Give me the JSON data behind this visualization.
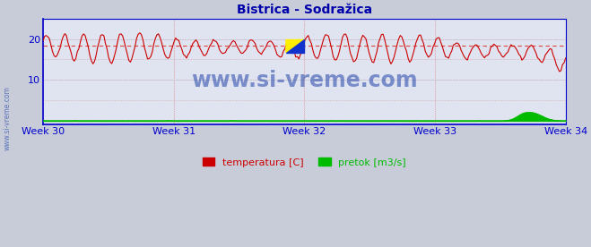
{
  "title_text": "Bistrica - Sodražica",
  "bg_color": "#c8ccd8",
  "plot_bg_color": "#e0e4f0",
  "grid_color": "#b0b4c8",
  "axis_color": "#0000cc",
  "title_color": "#0000aa",
  "week_labels": [
    "Week 30",
    "Week 31",
    "Week 32",
    "Week 33",
    "Week 34"
  ],
  "week_positions": [
    0,
    84,
    168,
    252,
    336
  ],
  "yticks": [
    10,
    20
  ],
  "ylim": [
    -1,
    25
  ],
  "xlim": [
    0,
    336
  ],
  "temp_color": "#cc0000",
  "flow_color": "#00bb00",
  "avg_line_color": "#dd4444",
  "avg_value": 18.3,
  "legend_labels": [
    "temperatura [C]",
    "pretok [m3/s]"
  ],
  "watermark": "www.si-vreme.com",
  "watermark_color": "#2244aa",
  "logo_yellow": "#ffee00",
  "logo_blue": "#1133cc",
  "dpi": 100,
  "figsize": [
    6.59,
    2.76
  ]
}
